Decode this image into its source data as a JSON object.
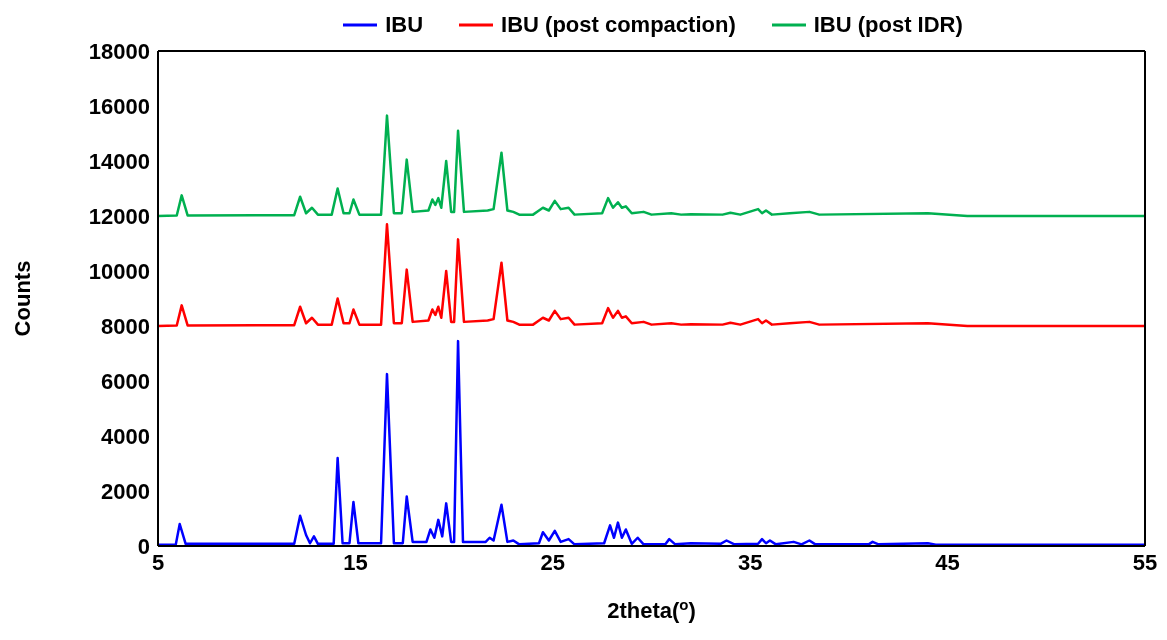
{
  "chart_data": {
    "type": "line",
    "xlabel": "2theta($^{o}$)",
    "ylabel": "Counts",
    "xlim": [
      5,
      55
    ],
    "xticks": [
      5,
      15,
      25,
      35,
      45,
      55
    ],
    "ylim": [
      0,
      18000
    ],
    "yticks": [
      0,
      2000,
      4000,
      6000,
      8000,
      10000,
      12000,
      14000,
      16000,
      18000
    ],
    "grid": false,
    "legend": "top",
    "marker": "none",
    "line_style": "solid",
    "series": [
      {
        "name": "IBU",
        "color": "#0000ff",
        "x": [
          5,
          5.9,
          6.1,
          6.4,
          11.9,
          12.2,
          12.5,
          12.7,
          12.9,
          13.1,
          13.9,
          14.1,
          14.35,
          14.7,
          14.9,
          15.15,
          16.3,
          16.6,
          16.95,
          17.4,
          17.6,
          17.9,
          18.6,
          18.8,
          19.0,
          19.2,
          19.4,
          19.6,
          19.85,
          20.0,
          20.2,
          20.45,
          21.6,
          21.8,
          22.0,
          22.4,
          22.7,
          23.0,
          23.3,
          24.3,
          24.5,
          24.8,
          25.1,
          25.4,
          25.8,
          26.1,
          27.6,
          27.9,
          28.1,
          28.3,
          28.5,
          28.7,
          29.0,
          29.3,
          29.6,
          30.7,
          30.9,
          31.2,
          32.0,
          33.5,
          33.8,
          34.2,
          35.4,
          35.6,
          35.8,
          36.0,
          36.3,
          37.2,
          37.6,
          38.0,
          38.3,
          41.0,
          41.2,
          41.5,
          44,
          44.4,
          55
        ],
        "values": [
          50,
          50,
          800,
          80,
          80,
          1100,
          400,
          100,
          350,
          80,
          80,
          3200,
          100,
          100,
          1600,
          100,
          100,
          6250,
          100,
          100,
          1800,
          150,
          150,
          600,
          300,
          950,
          350,
          1550,
          150,
          150,
          7450,
          150,
          150,
          300,
          200,
          1500,
          150,
          200,
          60,
          100,
          500,
          200,
          550,
          150,
          250,
          60,
          100,
          750,
          300,
          850,
          300,
          600,
          80,
          300,
          60,
          60,
          250,
          60,
          100,
          80,
          200,
          60,
          80,
          250,
          100,
          200,
          60,
          150,
          60,
          200,
          60,
          60,
          150,
          60,
          100,
          50,
          50
        ]
      },
      {
        "name": "IBU (post compaction)",
        "color": "#ff0000",
        "x": [
          5,
          5.95,
          6.2,
          6.5,
          11.9,
          12.2,
          12.5,
          12.8,
          13.1,
          13.8,
          14.1,
          14.4,
          14.7,
          14.9,
          15.2,
          16.3,
          16.6,
          16.95,
          17.35,
          17.6,
          17.9,
          18.7,
          18.9,
          19.05,
          19.2,
          19.35,
          19.6,
          19.85,
          20.0,
          20.2,
          20.5,
          21.7,
          22.0,
          22.4,
          22.7,
          23.0,
          23.3,
          24.0,
          24.3,
          24.5,
          24.8,
          25.1,
          25.4,
          25.8,
          26.1,
          27.5,
          27.8,
          28.05,
          28.3,
          28.5,
          28.7,
          29.0,
          29.6,
          30.0,
          31.0,
          31.5,
          32.0,
          33.6,
          34.0,
          34.5,
          35.4,
          35.6,
          35.8,
          36.1,
          37.0,
          38.0,
          38.5,
          44,
          46,
          55
        ],
        "values": [
          8000,
          8020,
          8750,
          8020,
          8030,
          8700,
          8100,
          8300,
          8050,
          8050,
          9000,
          8100,
          8100,
          8600,
          8050,
          8050,
          11700,
          8100,
          8100,
          10050,
          8150,
          8200,
          8600,
          8400,
          8700,
          8300,
          10000,
          8150,
          8150,
          11150,
          8150,
          8200,
          8250,
          10300,
          8200,
          8150,
          8050,
          8050,
          8200,
          8300,
          8200,
          8550,
          8250,
          8300,
          8050,
          8100,
          8650,
          8300,
          8550,
          8300,
          8350,
          8100,
          8150,
          8050,
          8100,
          8050,
          8060,
          8050,
          8120,
          8050,
          8250,
          8100,
          8200,
          8050,
          8100,
          8150,
          8050,
          8100,
          8000,
          8000
        ]
      },
      {
        "name": "IBU (post IDR)",
        "color": "#00b050",
        "x": [
          5,
          5.95,
          6.2,
          6.5,
          11.9,
          12.2,
          12.5,
          12.8,
          13.1,
          13.8,
          14.1,
          14.4,
          14.7,
          14.9,
          15.2,
          16.3,
          16.6,
          16.95,
          17.35,
          17.6,
          17.9,
          18.7,
          18.9,
          19.05,
          19.2,
          19.35,
          19.6,
          19.85,
          20.0,
          20.2,
          20.5,
          21.7,
          22.0,
          22.4,
          22.7,
          23.0,
          23.3,
          24.0,
          24.3,
          24.5,
          24.8,
          25.1,
          25.4,
          25.8,
          26.1,
          27.5,
          27.8,
          28.05,
          28.3,
          28.5,
          28.7,
          29.0,
          29.6,
          30.0,
          31.0,
          31.5,
          32.0,
          33.6,
          34.0,
          34.5,
          35.4,
          35.6,
          35.8,
          36.1,
          37.0,
          38.0,
          38.5,
          44,
          46,
          55
        ],
        "values": [
          12000,
          12020,
          12750,
          12020,
          12030,
          12700,
          12100,
          12300,
          12050,
          12050,
          13000,
          12100,
          12100,
          12600,
          12050,
          12050,
          15650,
          12100,
          12100,
          14050,
          12150,
          12200,
          12600,
          12400,
          12650,
          12300,
          14000,
          12150,
          12150,
          15100,
          12150,
          12200,
          12250,
          14300,
          12200,
          12150,
          12050,
          12050,
          12200,
          12300,
          12200,
          12550,
          12250,
          12300,
          12050,
          12100,
          12650,
          12300,
          12500,
          12300,
          12350,
          12100,
          12150,
          12050,
          12100,
          12050,
          12060,
          12050,
          12120,
          12050,
          12250,
          12100,
          12200,
          12050,
          12100,
          12150,
          12050,
          12100,
          12000,
          12000
        ]
      }
    ]
  }
}
